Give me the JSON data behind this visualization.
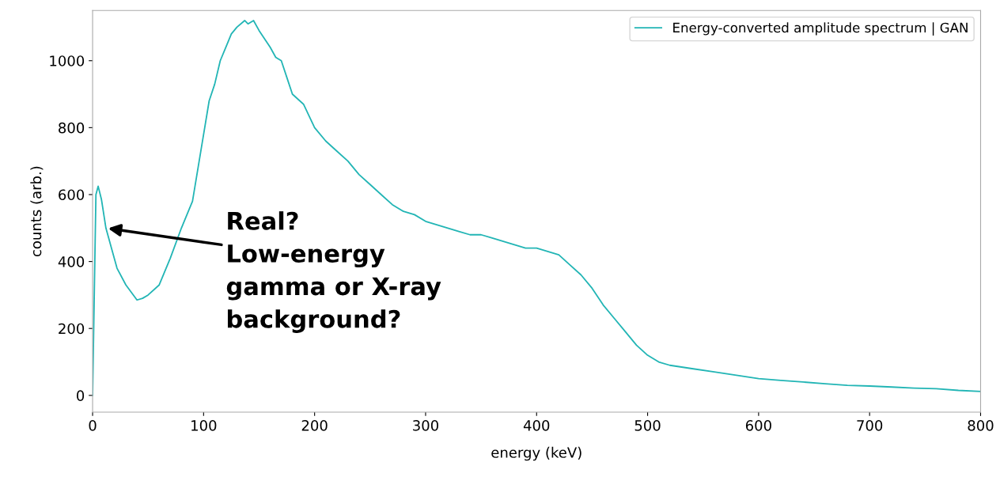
{
  "chart_data": {
    "type": "line",
    "xlabel": "energy (keV)",
    "ylabel": "counts (arb.)",
    "xlim": [
      0,
      800
    ],
    "ylim": [
      -50,
      1150
    ],
    "xticks": [
      0,
      100,
      200,
      300,
      400,
      500,
      600,
      700,
      800
    ],
    "yticks": [
      0,
      200,
      400,
      600,
      800,
      1000
    ],
    "grid": false,
    "legend": "top right",
    "series": [
      {
        "name": "Energy-converted amplitude spectrum | GAN",
        "color": "#22b5b5",
        "x": [
          0,
          1,
          3,
          5,
          8,
          12,
          17,
          22,
          30,
          40,
          45,
          50,
          60,
          70,
          80,
          90,
          95,
          100,
          105,
          110,
          115,
          120,
          125,
          130,
          137,
          140,
          145,
          150,
          160,
          165,
          170,
          175,
          180,
          190,
          200,
          210,
          220,
          230,
          240,
          250,
          260,
          270,
          280,
          290,
          300,
          310,
          320,
          330,
          340,
          350,
          360,
          370,
          380,
          390,
          400,
          410,
          420,
          430,
          440,
          450,
          460,
          470,
          480,
          490,
          500,
          510,
          520,
          540,
          560,
          580,
          600,
          620,
          640,
          660,
          680,
          700,
          720,
          740,
          760,
          780,
          800
        ],
        "values": [
          0,
          200,
          600,
          625,
          585,
          500,
          440,
          380,
          330,
          285,
          290,
          300,
          330,
          410,
          500,
          580,
          680,
          780,
          880,
          930,
          1000,
          1040,
          1080,
          1100,
          1120,
          1110,
          1120,
          1090,
          1040,
          1010,
          1000,
          950,
          900,
          870,
          800,
          760,
          730,
          700,
          660,
          630,
          600,
          570,
          550,
          540,
          520,
          510,
          500,
          490,
          480,
          480,
          470,
          460,
          450,
          440,
          440,
          430,
          420,
          390,
          360,
          320,
          270,
          230,
          190,
          150,
          120,
          100,
          90,
          80,
          70,
          60,
          50,
          45,
          40,
          35,
          30,
          28,
          25,
          22,
          20,
          15,
          12
        ]
      }
    ],
    "annotations": [
      {
        "text": "Real?\nLow-energy\ngamma or X-ray\nbackground?",
        "x": 12,
        "y": 500
      }
    ]
  }
}
